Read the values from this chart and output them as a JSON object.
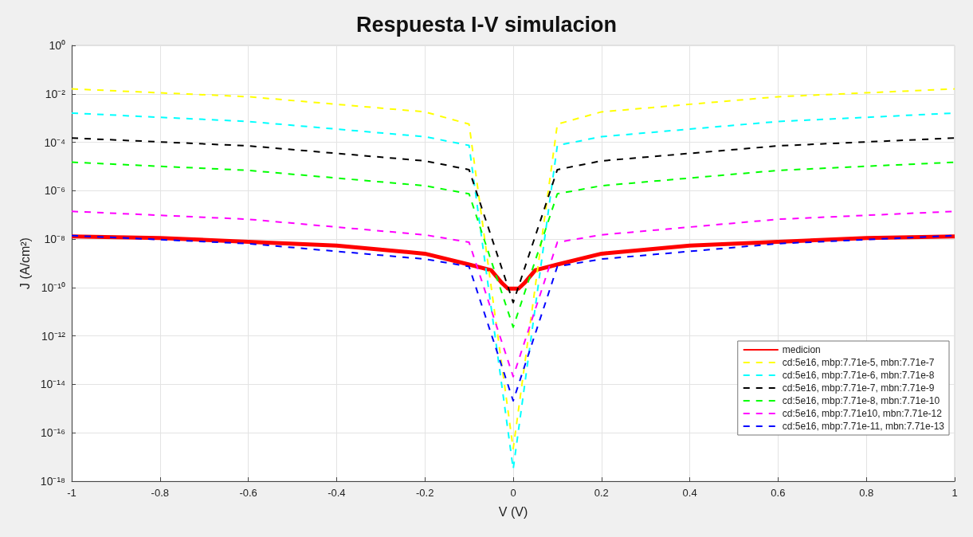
{
  "chart_data": {
    "type": "line",
    "title": "Respuesta I-V simulacion",
    "xlabel": "V (V)",
    "ylabel": "J (A/cm²)",
    "log": "y",
    "grid": true,
    "legend": "bottom right",
    "marker": "none",
    "xlim": [
      -1,
      1
    ],
    "xticks": [
      -1,
      -0.8,
      -0.6,
      -0.4,
      -0.2,
      0,
      0.2,
      0.4,
      0.6,
      0.8,
      1
    ],
    "ylim": [
      1e-18,
      1
    ],
    "yticks": [
      {
        "value": 1e-18,
        "label": "10⁻¹⁸"
      },
      {
        "value": 1e-16,
        "label": "10⁻¹⁶"
      },
      {
        "value": 1e-14,
        "label": "10⁻¹⁴"
      },
      {
        "value": 1e-12,
        "label": "10⁻¹²"
      },
      {
        "value": 1e-10,
        "label": "10⁻¹⁰"
      },
      {
        "value": 1e-08,
        "label": "10⁻⁸"
      },
      {
        "value": 1e-06,
        "label": "10⁻⁶"
      },
      {
        "value": 0.0001,
        "label": "10⁻⁴"
      },
      {
        "value": 0.01,
        "label": "10⁻²"
      },
      {
        "value": 1,
        "label": "10⁰"
      }
    ],
    "x": [
      -1,
      -0.6,
      -0.2,
      -0.1,
      0,
      0.1,
      0.2,
      0.6,
      1
    ],
    "series": [
      {
        "name": "medicion",
        "color": "#ff0000",
        "line_style": "solid",
        "x": [
          -1,
          -0.8,
          -0.6,
          -0.4,
          -0.2,
          -0.1,
          -0.05,
          -0.025,
          -0.012,
          0.012,
          0.025,
          0.05,
          0.1,
          0.2,
          0.4,
          0.6,
          0.8,
          1
        ],
        "values": [
          1.3e-08,
          1.1e-08,
          7.8e-09,
          5.4e-09,
          2.5e-09,
          8.9e-10,
          5.2e-10,
          1.5e-10,
          9e-11,
          9e-11,
          1.5e-10,
          5.2e-10,
          8.9e-10,
          2.5e-09,
          5.4e-09,
          7.8e-09,
          1.1e-08,
          1.3e-08
        ]
      },
      {
        "name": "cd:5e16, mbp:7.71e-5, mbn:7.71e-7",
        "color": "#ffff00",
        "line_style": "dashed",
        "values": [
          0.016,
          0.0076,
          0.0018,
          0.00056,
          2.2e-17,
          0.00056,
          0.0018,
          0.0076,
          0.016
        ]
      },
      {
        "name": "cd:5e16, mbp:7.71e-6, mbn:7.71e-8",
        "color": "#00ffff",
        "line_style": "dashed",
        "values": [
          0.0016,
          0.00072,
          0.00017,
          7.4e-05,
          3.2e-18,
          7.4e-05,
          0.00017,
          0.00072,
          0.0016
        ]
      },
      {
        "name": "cd:5e16, mbp:7.71e-7, mbn:7.71e-9",
        "color": "#000000",
        "line_style": "dashed",
        "values": [
          0.00015,
          7.1e-05,
          1.7e-05,
          7.4e-06,
          2.4e-11,
          7.4e-06,
          1.7e-05,
          7.1e-05,
          0.00015
        ]
      },
      {
        "name": "cd:5e16, mbp:7.71e-8, mbn:7.71e-10",
        "color": "#00ff00",
        "line_style": "dashed",
        "values": [
          1.5e-05,
          6.9e-06,
          1.6e-06,
          7.4e-07,
          2.3e-12,
          7.4e-07,
          1.6e-06,
          6.9e-06,
          1.5e-05
        ]
      },
      {
        "name": "cd:5e16, mbp:7.71e10, mbn:7.71e-12",
        "color": "#ff00ff",
        "line_style": "dashed",
        "values": [
          1.4e-07,
          6.6e-08,
          1.5e-08,
          7.4e-09,
          2.1e-14,
          7.4e-09,
          1.5e-08,
          6.6e-08,
          1.4e-07
        ]
      },
      {
        "name": "cd:5e16, mbp:7.71e-11, mbn:7.71e-13",
        "color": "#0000ff",
        "line_style": "dashed",
        "values": [
          1.4e-08,
          6.5e-09,
          1.5e-09,
          7.4e-10,
          2.1e-15,
          7.4e-10,
          1.5e-09,
          6.5e-09,
          1.4e-08
        ]
      }
    ]
  }
}
